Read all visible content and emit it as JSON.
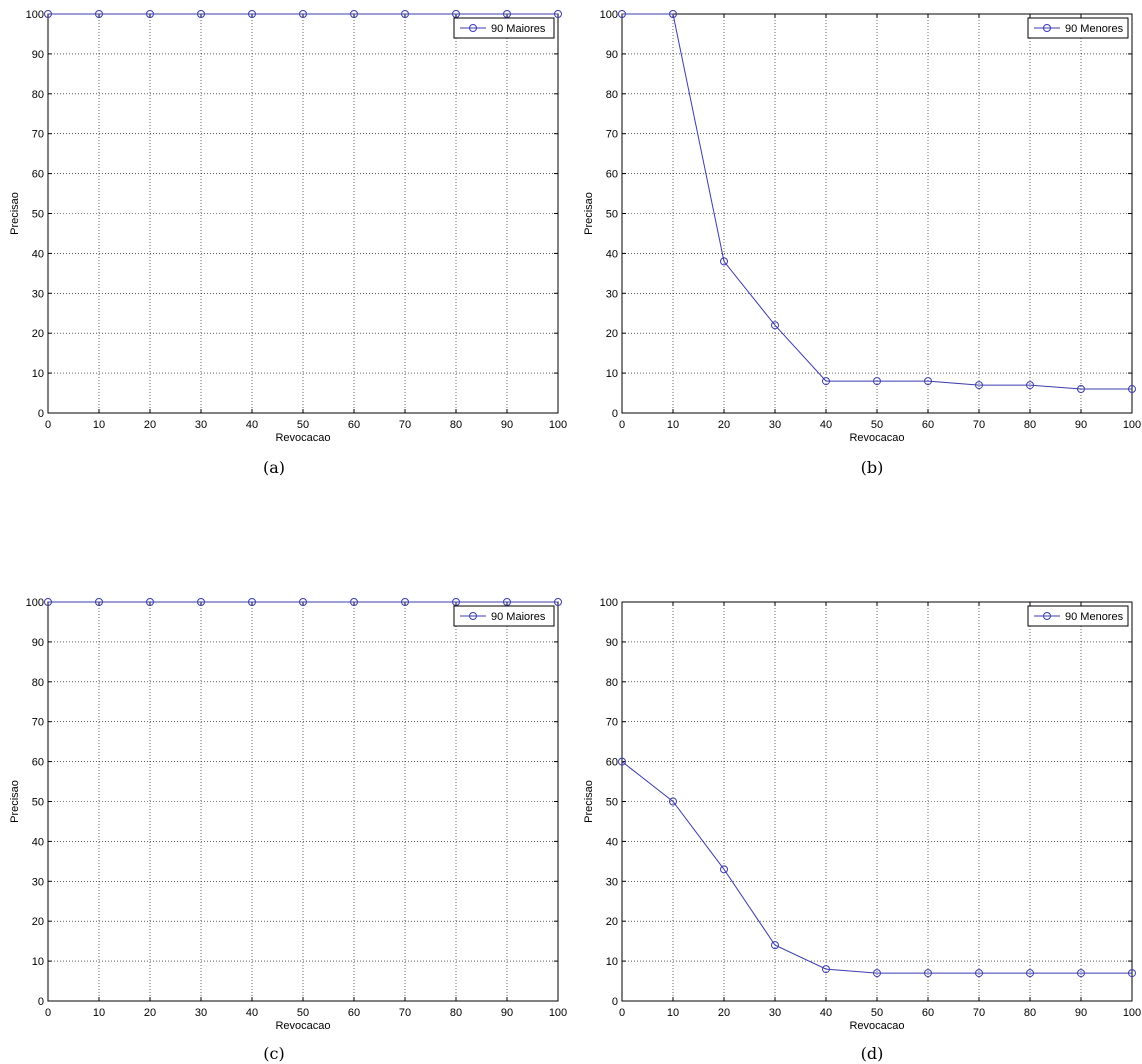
{
  "chart_data": [
    {
      "type": "line",
      "caption": "(a)",
      "xlabel": "Revocacao",
      "ylabel": "Precisao",
      "xlim": [
        0,
        100
      ],
      "ylim": [
        0,
        100
      ],
      "x_ticks": [
        "0",
        "10",
        "20",
        "30",
        "40",
        "50",
        "60",
        "70",
        "80",
        "90",
        "100"
      ],
      "y_ticks": [
        "0",
        "10",
        "20",
        "30",
        "40",
        "50",
        "60",
        "70",
        "80",
        "90",
        "100"
      ],
      "grid": true,
      "legend_position": "top-right",
      "marker": "circle",
      "series_color": "#3b3bb0",
      "x": [
        0,
        10,
        20,
        30,
        40,
        50,
        60,
        70,
        80,
        90,
        100
      ],
      "series": [
        {
          "name": "90 Maiores",
          "values": [
            100,
            100,
            100,
            100,
            100,
            100,
            100,
            100,
            100,
            100,
            100
          ]
        }
      ]
    },
    {
      "type": "line",
      "caption": "(b)",
      "xlabel": "Revocacao",
      "ylabel": "Precisao",
      "xlim": [
        0,
        100
      ],
      "ylim": [
        0,
        100
      ],
      "x_ticks": [
        "0",
        "10",
        "20",
        "30",
        "40",
        "50",
        "60",
        "70",
        "80",
        "90",
        "100"
      ],
      "y_ticks": [
        "0",
        "10",
        "20",
        "30",
        "40",
        "50",
        "60",
        "70",
        "80",
        "90",
        "100"
      ],
      "grid": true,
      "legend_position": "top-right",
      "marker": "circle",
      "series_color": "#3b3bb0",
      "x": [
        0,
        10,
        20,
        30,
        40,
        50,
        60,
        70,
        80,
        90,
        100
      ],
      "series": [
        {
          "name": "90 Menores",
          "values": [
            100,
            100,
            38,
            22,
            8,
            8,
            8,
            7,
            7,
            6,
            6
          ]
        }
      ]
    },
    {
      "type": "line",
      "caption": "(c)",
      "xlabel": "Revocacao",
      "ylabel": "Precisao",
      "xlim": [
        0,
        100
      ],
      "ylim": [
        0,
        100
      ],
      "x_ticks": [
        "0",
        "10",
        "20",
        "30",
        "40",
        "50",
        "60",
        "70",
        "80",
        "90",
        "100"
      ],
      "y_ticks": [
        "0",
        "10",
        "20",
        "30",
        "40",
        "50",
        "60",
        "70",
        "80",
        "90",
        "100"
      ],
      "grid": true,
      "legend_position": "top-right",
      "marker": "circle",
      "series_color": "#3b3bb0",
      "x": [
        0,
        10,
        20,
        30,
        40,
        50,
        60,
        70,
        80,
        90,
        100
      ],
      "series": [
        {
          "name": "90 Maiores",
          "values": [
            100,
            100,
            100,
            100,
            100,
            100,
            100,
            100,
            100,
            100,
            100
          ]
        }
      ]
    },
    {
      "type": "line",
      "caption": "(d)",
      "xlabel": "Revocacao",
      "ylabel": "Precisao",
      "xlim": [
        0,
        100
      ],
      "ylim": [
        0,
        100
      ],
      "x_ticks": [
        "0",
        "10",
        "20",
        "30",
        "40",
        "50",
        "60",
        "70",
        "80",
        "90",
        "100"
      ],
      "y_ticks": [
        "0",
        "10",
        "20",
        "30",
        "40",
        "50",
        "60",
        "70",
        "80",
        "90",
        "100"
      ],
      "grid": true,
      "legend_position": "top-right",
      "marker": "circle",
      "series_color": "#3b3bb0",
      "x": [
        0,
        10,
        20,
        30,
        40,
        50,
        60,
        70,
        80,
        90,
        100
      ],
      "series": [
        {
          "name": "90 Menores",
          "values": [
            60,
            50,
            33,
            14,
            8,
            7,
            7,
            7,
            7,
            7,
            7
          ]
        }
      ]
    }
  ]
}
